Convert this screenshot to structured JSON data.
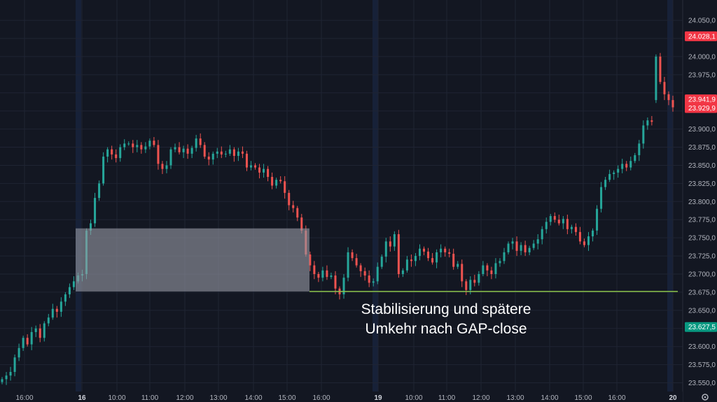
{
  "chart_data": {
    "type": "candlestick",
    "ylim": [
      23550,
      24050
    ],
    "y_ticks": [
      {
        "value": 23550,
        "label": "23.550,0"
      },
      {
        "value": 23575,
        "label": "23.575,0"
      },
      {
        "value": 23600,
        "label": "23.600,0"
      },
      {
        "value": 23650,
        "label": "23.650,0"
      },
      {
        "value": 23675,
        "label": "23.675,0"
      },
      {
        "value": 23700,
        "label": "23.700,0"
      },
      {
        "value": 23725,
        "label": "23.725,0"
      },
      {
        "value": 23750,
        "label": "23.750,0"
      },
      {
        "value": 23775,
        "label": "23.775,0"
      },
      {
        "value": 23800,
        "label": "23.800,0"
      },
      {
        "value": 23825,
        "label": "23.825,0"
      },
      {
        "value": 23850,
        "label": "23.850,0"
      },
      {
        "value": 23875,
        "label": "23.875,0"
      },
      {
        "value": 23900,
        "label": "23.900,0"
      },
      {
        "value": 23975,
        "label": "23.975,0"
      },
      {
        "value": 24000,
        "label": "24.000,0"
      },
      {
        "value": 24050,
        "label": "24.050,0"
      }
    ],
    "x_ticks": [
      "16:00",
      "16",
      "10:00",
      "11:00",
      "12:00",
      "13:00",
      "14:00",
      "15:00",
      "16:00",
      "19",
      "10:00",
      "11:00",
      "12:00",
      "13:00",
      "14:00",
      "15:00",
      "16:00",
      "20"
    ],
    "price_badges": [
      {
        "value": 24028,
        "label": "24.028,1",
        "color": "#f23645"
      },
      {
        "value": 23941,
        "label": "23.941,9",
        "color": "#f23645"
      },
      {
        "value": 23929,
        "label": "23.929,9",
        "color": "#f23645"
      },
      {
        "value": 23627,
        "label": "23.627,5",
        "color": "#089981"
      }
    ],
    "gap_zone": {
      "price_low": 23676,
      "price_high": 23763,
      "color": "#9598a1"
    },
    "gap_close_line": {
      "value": 23676,
      "color": "#8bc34a"
    },
    "annotation": [
      "Stabilisierung und spätere",
      "Umkehr nach GAP-close"
    ],
    "colors": {
      "up": "#26a69a",
      "down": "#ef5350",
      "background": "#131722",
      "grid": "#1f2433",
      "session": "#1c2a4a"
    },
    "series": [
      {
        "name": "",
        "close": [
          23555,
          23560,
          23565,
          23585,
          23598,
          23612,
          23603,
          23620,
          23625,
          23612,
          23632,
          23640,
          23652,
          23648,
          23662,
          23672,
          23682,
          23690,
          23698,
          23700,
          23760,
          23770,
          23805,
          23825,
          23862,
          23872,
          23865,
          23860,
          23875,
          23880,
          23880,
          23875,
          23878,
          23872,
          23876,
          23884,
          23878,
          23852,
          23845,
          23850,
          23872,
          23875,
          23868,
          23873,
          23866,
          23874,
          23887,
          23878,
          23862,
          23858,
          23866,
          23869,
          23865,
          23866,
          23872,
          23863,
          23869,
          23866,
          23847,
          23850,
          23847,
          23840,
          23845,
          23834,
          23822,
          23830,
          23828,
          23812,
          23795,
          23791,
          23778,
          23760,
          23727,
          23712,
          23700,
          23695,
          23705,
          23696,
          23698,
          23680,
          23672,
          23695,
          23730,
          23722,
          23712,
          23704,
          23698,
          23688,
          23690,
          23710,
          23724,
          23745,
          23738,
          23755,
          23700,
          23705,
          23720,
          23718,
          23725,
          23735,
          23731,
          23722,
          23716,
          23730,
          23735,
          23730,
          23728,
          23710,
          23714,
          23690,
          23678,
          23692,
          23688,
          23700,
          23712,
          23705,
          23700,
          23715,
          23718,
          23730,
          23742,
          23745,
          23732,
          23740,
          23730,
          23736,
          23742,
          23748,
          23762,
          23772,
          23780,
          23775,
          23770,
          23776,
          23762,
          23765,
          23758,
          23745,
          23740,
          23752,
          23760,
          23790,
          23820,
          23830,
          23838,
          23840,
          23845,
          23852,
          23847,
          23856,
          23864,
          23880,
          23905,
          23912,
          23910,
          24000,
          23965,
          23948,
          23940,
          23930
        ]
      }
    ]
  }
}
